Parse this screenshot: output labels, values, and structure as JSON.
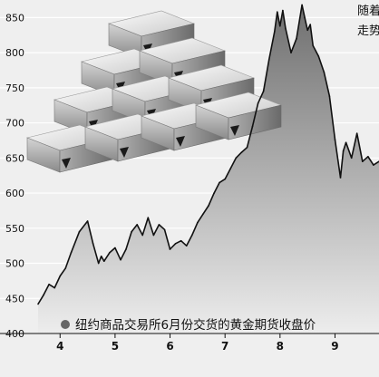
{
  "chart_data": {
    "type": "area",
    "title": "",
    "caption": "纽约商品交易所6月份交货的黄金期货收盘价",
    "side_note_lines": [
      "随着",
      "走势"
    ],
    "x_tick_labels": [
      "4",
      "5",
      "6",
      "7",
      "8",
      "9"
    ],
    "y_tick_labels": [
      "400",
      "450",
      "500",
      "550",
      "600",
      "650",
      "700",
      "750",
      "800",
      "850"
    ],
    "ylim": [
      400,
      875
    ],
    "x_range": [
      3.6,
      9.8
    ],
    "grid": true,
    "series": [
      {
        "x": [
          3.6,
          3.7,
          3.8,
          3.9,
          4.0,
          4.1,
          4.2,
          4.35,
          4.5,
          4.6,
          4.7,
          4.75,
          4.8,
          4.9,
          5.0,
          5.1,
          5.2,
          5.3,
          5.4,
          5.5,
          5.6,
          5.7,
          5.8,
          5.9,
          6.0,
          6.1,
          6.2,
          6.3,
          6.4,
          6.5,
          6.6,
          6.7,
          6.8,
          6.9,
          7.0,
          7.1,
          7.2,
          7.3,
          7.4,
          7.5,
          7.6,
          7.7,
          7.8,
          7.9,
          7.95,
          8.0,
          8.05,
          8.1,
          8.2,
          8.3,
          8.4,
          8.45,
          8.5,
          8.55,
          8.6,
          8.7,
          8.8,
          8.9,
          9.0,
          9.1,
          9.15,
          9.2,
          9.3,
          9.4,
          9.5,
          9.6,
          9.7,
          9.8
        ],
        "values": [
          442,
          455,
          470,
          465,
          482,
          493,
          515,
          545,
          560,
          528,
          500,
          510,
          503,
          515,
          522,
          505,
          520,
          545,
          555,
          540,
          565,
          540,
          555,
          548,
          520,
          528,
          532,
          525,
          540,
          558,
          570,
          582,
          600,
          615,
          620,
          635,
          650,
          658,
          665,
          695,
          728,
          745,
          790,
          830,
          858,
          838,
          860,
          835,
          800,
          820,
          868,
          850,
          832,
          840,
          810,
          795,
          772,
          738,
          676,
          622,
          660,
          672,
          650,
          685,
          645,
          652,
          640,
          645
        ]
      }
    ]
  },
  "colors": {
    "background": "#efefef",
    "gridline": "#ffffff",
    "area_top": "#6f6f6f",
    "area_bottom": "#ededed",
    "line": "#111111",
    "caption_bullet": "#666666"
  },
  "icons": {
    "illustration": "gold-bars-pyramid-icon",
    "caption_bullet": "bullet-circle-icon"
  }
}
